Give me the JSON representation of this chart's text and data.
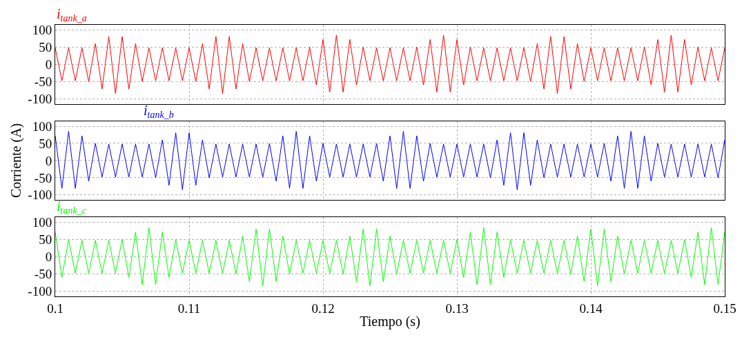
{
  "chart_data": [
    {
      "type": "line",
      "x": [
        0.1,
        0.1005,
        0.101,
        0.1015,
        0.102,
        0.1025,
        0.103,
        0.1035,
        0.104,
        0.1045,
        0.105,
        0.1055,
        0.106,
        0.1065,
        0.107,
        0.1075,
        0.108,
        0.1085,
        0.109,
        0.1095,
        0.11,
        0.1105,
        0.111,
        0.1115,
        0.112,
        0.1125,
        0.113,
        0.1135,
        0.114,
        0.1145,
        0.115,
        0.1155,
        0.116,
        0.1165,
        0.117,
        0.1175,
        0.118,
        0.1185,
        0.119,
        0.1195,
        0.12,
        0.1205,
        0.121,
        0.1215,
        0.122,
        0.1225,
        0.123,
        0.1235,
        0.124,
        0.1245,
        0.125,
        0.1255,
        0.126,
        0.1265,
        0.127,
        0.1275,
        0.128,
        0.1285,
        0.129,
        0.1295,
        0.13,
        0.1305,
        0.131,
        0.1315,
        0.132,
        0.1325,
        0.133,
        0.1335,
        0.134,
        0.1345,
        0.135,
        0.1355,
        0.136,
        0.1365,
        0.137,
        0.1375,
        0.138,
        0.1385,
        0.139,
        0.1395,
        0.14,
        0.1405,
        0.141,
        0.1415,
        0.142,
        0.1425,
        0.143,
        0.1435,
        0.144,
        0.1445,
        0.145,
        0.1455,
        0.146,
        0.1465,
        0.147,
        0.1475,
        0.148,
        0.1485,
        0.149,
        0.1495,
        0.15
      ],
      "series": [
        {
          "name": "i$_{tank_a}$",
          "color": "#ff0000",
          "values": [
            48,
            -48,
            48,
            -48,
            48,
            -50,
            60,
            -72,
            81,
            -85,
            81,
            -72,
            60,
            -50,
            48,
            -48,
            48,
            -48,
            48,
            -48,
            48,
            -50,
            60,
            -72,
            81,
            -85,
            81,
            -72,
            60,
            -50,
            48,
            -48,
            48,
            -48,
            48,
            -48,
            48,
            -48,
            50,
            -60,
            72,
            -81,
            85,
            -81,
            72,
            -60,
            50,
            -48,
            48,
            -48,
            48,
            -48,
            48,
            -48,
            50,
            -60,
            72,
            -81,
            85,
            -81,
            72,
            -60,
            50,
            -48,
            48,
            -48,
            48,
            -48,
            48,
            -48,
            48,
            -50,
            60,
            -72,
            81,
            -85,
            81,
            -72,
            60,
            -50,
            48,
            -48,
            48,
            -48,
            48,
            -48,
            48,
            -48,
            50,
            -60,
            72,
            -81,
            85,
            -81,
            72,
            -60,
            50,
            -48,
            48,
            -48,
            48
          ]
        }
      ],
      "xlim": [
        0.1,
        0.15
      ],
      "xticks": [
        0.1,
        0.11,
        0.12,
        0.13,
        0.14,
        0.15
      ],
      "ylim": [
        -115,
        115
      ],
      "yticks": [
        -100,
        -50,
        0,
        50,
        100
      ],
      "grid": true,
      "tick_labels": "y",
      "line_style": "solid",
      "marker": "none"
    },
    {
      "type": "line",
      "ylabel": "Corriente (A)",
      "x": [
        0.1,
        0.1005,
        0.101,
        0.1015,
        0.102,
        0.1025,
        0.103,
        0.1035,
        0.104,
        0.1045,
        0.105,
        0.1055,
        0.106,
        0.1065,
        0.107,
        0.1075,
        0.108,
        0.1085,
        0.109,
        0.1095,
        0.11,
        0.1105,
        0.111,
        0.1115,
        0.112,
        0.1125,
        0.113,
        0.1135,
        0.114,
        0.1145,
        0.115,
        0.1155,
        0.116,
        0.1165,
        0.117,
        0.1175,
        0.118,
        0.1185,
        0.119,
        0.1195,
        0.12,
        0.1205,
        0.121,
        0.1215,
        0.122,
        0.1225,
        0.123,
        0.1235,
        0.124,
        0.1245,
        0.125,
        0.1255,
        0.126,
        0.1265,
        0.127,
        0.1275,
        0.128,
        0.1285,
        0.129,
        0.1295,
        0.13,
        0.1305,
        0.131,
        0.1315,
        0.132,
        0.1325,
        0.133,
        0.1335,
        0.134,
        0.1345,
        0.135,
        0.1355,
        0.136,
        0.1365,
        0.137,
        0.1375,
        0.138,
        0.1385,
        0.139,
        0.1395,
        0.14,
        0.1405,
        0.141,
        0.1415,
        0.142,
        0.1425,
        0.143,
        0.1435,
        0.144,
        0.1445,
        0.145,
        0.1455,
        0.146,
        0.1465,
        0.147,
        0.1475,
        0.148,
        0.1485,
        0.149,
        0.1495,
        0.15
      ],
      "series": [
        {
          "name": "i$_{tank_b}$",
          "color": "#0000ff",
          "values": [
            72,
            -81,
            85,
            -81,
            72,
            -60,
            50,
            -48,
            48,
            -48,
            48,
            -48,
            48,
            -48,
            48,
            -50,
            60,
            -72,
            81,
            -85,
            81,
            -72,
            60,
            -50,
            48,
            -48,
            48,
            -48,
            48,
            -48,
            48,
            -48,
            50,
            -60,
            72,
            -81,
            85,
            -81,
            72,
            -60,
            50,
            -48,
            48,
            -48,
            48,
            -48,
            48,
            -48,
            50,
            -60,
            72,
            -81,
            85,
            -81,
            72,
            -60,
            50,
            -48,
            48,
            -48,
            48,
            -48,
            48,
            -48,
            48,
            -50,
            60,
            -72,
            81,
            -85,
            81,
            -72,
            60,
            -50,
            48,
            -48,
            48,
            -48,
            48,
            -48,
            48,
            -48,
            50,
            -60,
            72,
            -81,
            85,
            -81,
            72,
            -60,
            50,
            -48,
            48,
            -48,
            48,
            -48,
            48,
            -48,
            48,
            -50,
            60
          ]
        }
      ],
      "xlim": [
        0.1,
        0.15
      ],
      "xticks": [
        0.1,
        0.11,
        0.12,
        0.13,
        0.14,
        0.15
      ],
      "ylim": [
        -115,
        115
      ],
      "yticks": [
        -100,
        -50,
        0,
        50,
        100
      ],
      "grid": true,
      "tick_labels": "y",
      "line_style": "solid",
      "marker": "none"
    },
    {
      "type": "line",
      "xlabel": "Tiempo (s)",
      "x": [
        0.1,
        0.1005,
        0.101,
        0.1015,
        0.102,
        0.1025,
        0.103,
        0.1035,
        0.104,
        0.1045,
        0.105,
        0.1055,
        0.106,
        0.1065,
        0.107,
        0.1075,
        0.108,
        0.1085,
        0.109,
        0.1095,
        0.11,
        0.1105,
        0.111,
        0.1115,
        0.112,
        0.1125,
        0.113,
        0.1135,
        0.114,
        0.1145,
        0.115,
        0.1155,
        0.116,
        0.1165,
        0.117,
        0.1175,
        0.118,
        0.1185,
        0.119,
        0.1195,
        0.12,
        0.1205,
        0.121,
        0.1215,
        0.122,
        0.1225,
        0.123,
        0.1235,
        0.124,
        0.1245,
        0.125,
        0.1255,
        0.126,
        0.1265,
        0.127,
        0.1275,
        0.128,
        0.1285,
        0.129,
        0.1295,
        0.13,
        0.1305,
        0.131,
        0.1315,
        0.132,
        0.1325,
        0.133,
        0.1335,
        0.134,
        0.1345,
        0.135,
        0.1355,
        0.136,
        0.1365,
        0.137,
        0.1375,
        0.138,
        0.1385,
        0.139,
        0.1395,
        0.14,
        0.1405,
        0.141,
        0.1415,
        0.142,
        0.1425,
        0.143,
        0.1435,
        0.144,
        0.1445,
        0.145,
        0.1455,
        0.146,
        0.1465,
        0.147,
        0.1475,
        0.148,
        0.1485,
        0.149,
        0.1495,
        0.15
      ],
      "series": [
        {
          "name": "i$_{tank_c}$",
          "color": "#00ff00",
          "values": [
            72,
            -60,
            50,
            -48,
            48,
            -48,
            48,
            -48,
            48,
            -48,
            50,
            -60,
            72,
            -81,
            85,
            -81,
            72,
            -60,
            50,
            -48,
            48,
            -48,
            48,
            -48,
            48,
            -48,
            48,
            -50,
            60,
            -72,
            81,
            -85,
            81,
            -72,
            60,
            -50,
            48,
            -48,
            48,
            -48,
            48,
            -48,
            48,
            -50,
            60,
            -72,
            81,
            -85,
            81,
            -72,
            60,
            -50,
            48,
            -48,
            48,
            -48,
            48,
            -48,
            48,
            -48,
            50,
            -60,
            72,
            -81,
            85,
            -81,
            72,
            -60,
            50,
            -48,
            48,
            -48,
            48,
            -48,
            48,
            -48,
            48,
            -50,
            60,
            -72,
            81,
            -85,
            81,
            -72,
            60,
            -50,
            48,
            -48,
            48,
            -48,
            48,
            -48,
            48,
            -48,
            50,
            -60,
            72,
            -81,
            85,
            -81,
            72
          ]
        }
      ],
      "xlim": [
        0.1,
        0.15
      ],
      "xticks": [
        0.1,
        0.11,
        0.12,
        0.13,
        0.14,
        0.15
      ],
      "ylim": [
        -115,
        115
      ],
      "yticks": [
        -100,
        -50,
        0,
        50,
        100
      ],
      "grid": true,
      "line_style": "solid",
      "marker": "none"
    }
  ]
}
